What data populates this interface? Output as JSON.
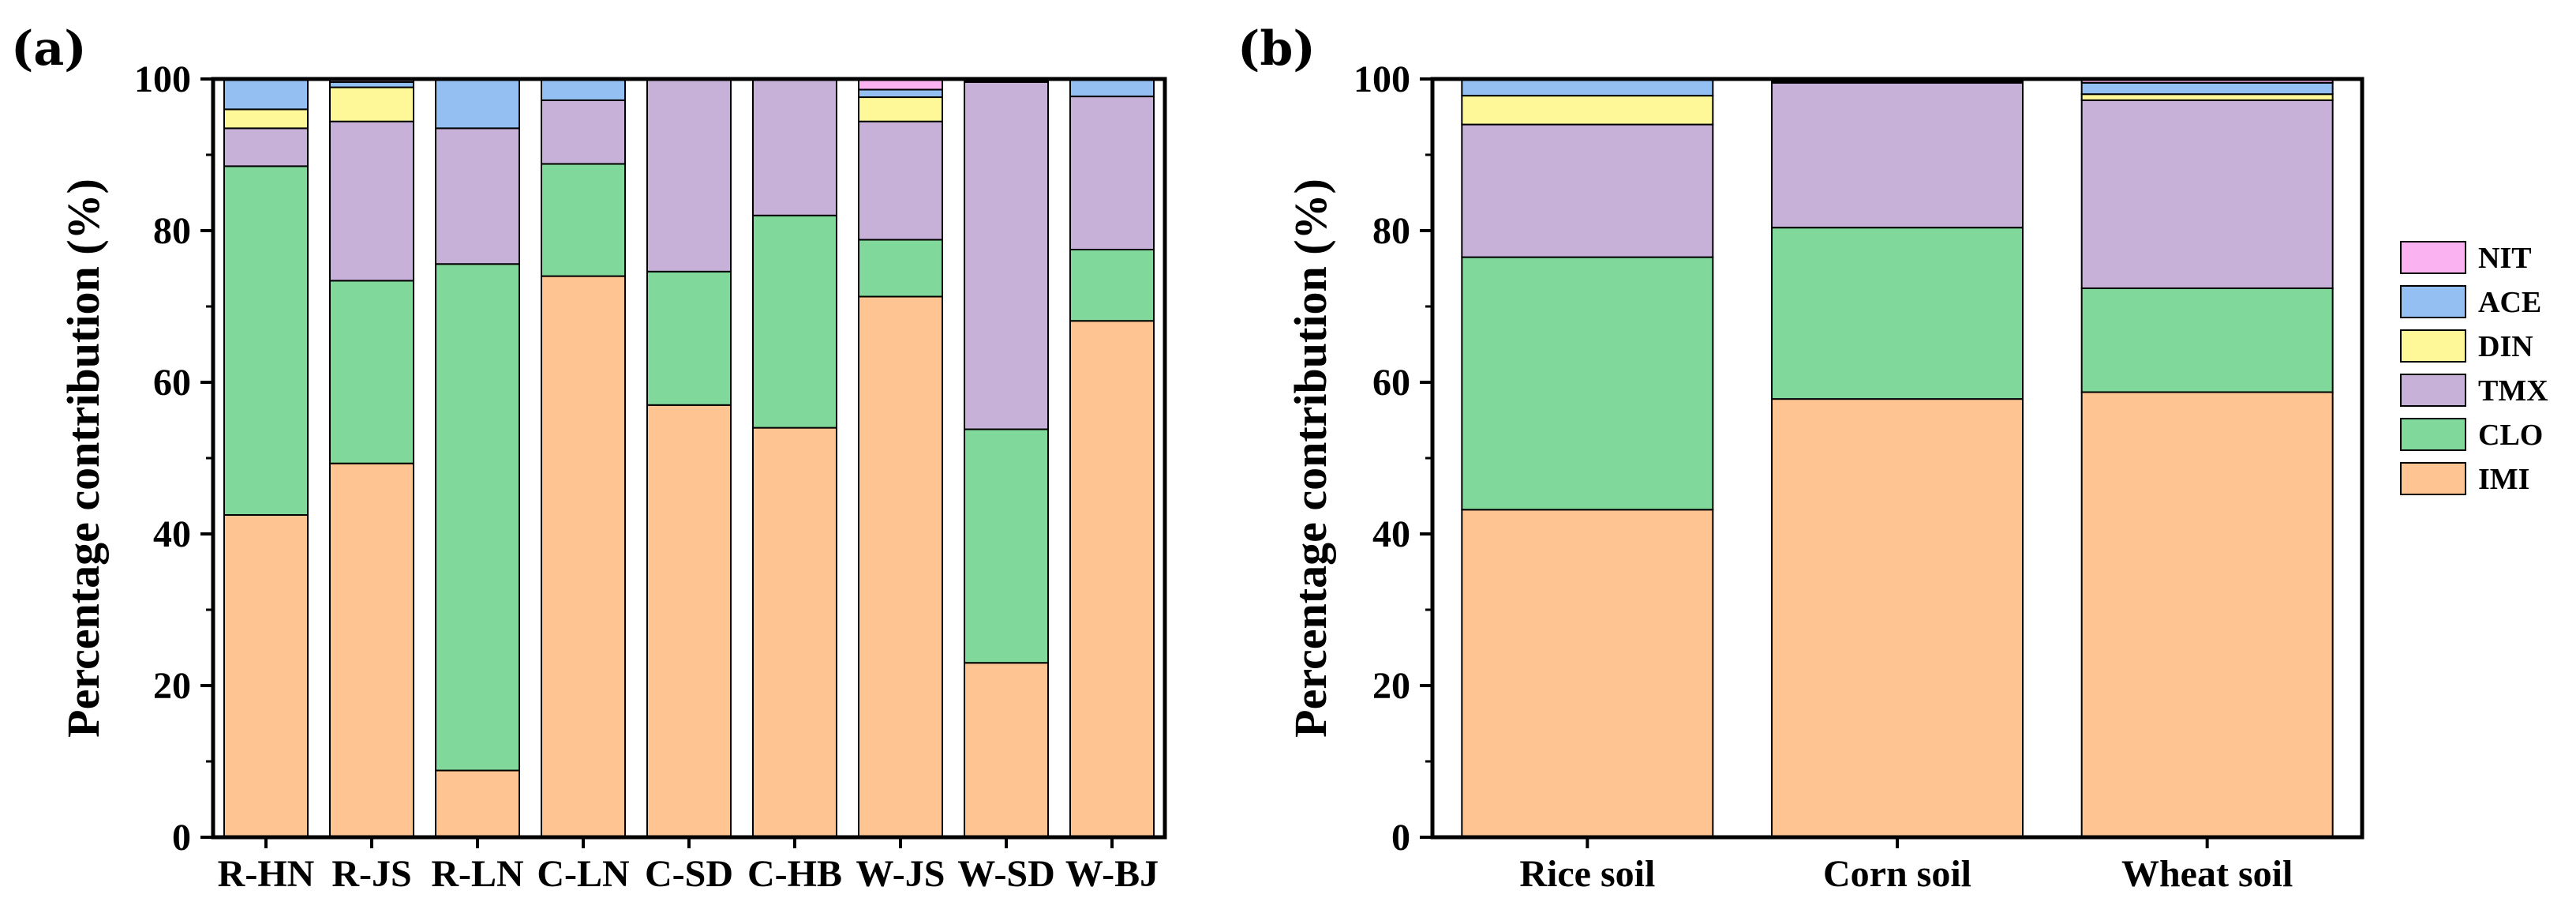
{
  "series_colors": {
    "IMI": "#FEC593",
    "CLO": "#80D99A",
    "TMX": "#C8B1D8",
    "DIN": "#FEF898",
    "ACE": "#93BFF3",
    "NIT": "#FBB2F0"
  },
  "legend": {
    "entries": [
      "NIT",
      "ACE",
      "DIN",
      "TMX",
      "CLO",
      "IMI"
    ]
  },
  "chart_data": [
    {
      "type": "bar",
      "stacked": true,
      "panel_label": "(a)",
      "title": "",
      "xlabel": "",
      "ylabel": "Percentage contribution (%)",
      "ylim": [
        0,
        100
      ],
      "yticks": [
        "0",
        "20",
        "40",
        "60",
        "80",
        "100"
      ],
      "categories": [
        "R-HN",
        "R-JS",
        "R-LN",
        "C-LN",
        "C-SD",
        "C-HB",
        "W-JS",
        "W-SD",
        "W-BJ"
      ],
      "series": [
        {
          "name": "IMI",
          "values": [
            42.5,
            49.3,
            8.8,
            74.0,
            57.0,
            54.0,
            71.3,
            23.0,
            68.1
          ]
        },
        {
          "name": "CLO",
          "values": [
            46.0,
            24.1,
            66.8,
            14.8,
            17.6,
            28.0,
            7.5,
            30.8,
            9.4
          ]
        },
        {
          "name": "TMX",
          "values": [
            5.0,
            21.0,
            17.9,
            8.4,
            25.4,
            18.0,
            15.6,
            45.8,
            20.2
          ]
        },
        {
          "name": "DIN",
          "values": [
            2.5,
            4.5,
            0.0,
            0.0,
            0.0,
            0.0,
            3.2,
            0.0,
            0.0
          ]
        },
        {
          "name": "ACE",
          "values": [
            4.0,
            0.7,
            6.5,
            2.8,
            0.0,
            0.0,
            1.0,
            0.2,
            2.3
          ]
        },
        {
          "name": "NIT",
          "values": [
            0.0,
            0.4,
            0.0,
            0.0,
            0.0,
            0.0,
            1.4,
            0.2,
            0.0
          ]
        }
      ]
    },
    {
      "type": "bar",
      "stacked": true,
      "panel_label": "(b)",
      "title": "",
      "xlabel": "",
      "ylabel": "Percentage contribution (%)",
      "ylim": [
        0,
        100
      ],
      "yticks": [
        "0",
        "20",
        "40",
        "60",
        "80",
        "100"
      ],
      "categories": [
        "Rice soil",
        "Corn soil",
        "Wheat soil"
      ],
      "legend_position": "right",
      "series": [
        {
          "name": "IMI",
          "values": [
            43.2,
            57.8,
            58.7
          ]
        },
        {
          "name": "CLO",
          "values": [
            33.3,
            22.6,
            13.7
          ]
        },
        {
          "name": "TMX",
          "values": [
            17.5,
            19.1,
            24.8
          ]
        },
        {
          "name": "DIN",
          "values": [
            3.8,
            0.2,
            0.8
          ]
        },
        {
          "name": "ACE",
          "values": [
            2.2,
            0.3,
            1.5
          ]
        },
        {
          "name": "NIT",
          "values": [
            0.0,
            0.0,
            0.5
          ]
        }
      ]
    }
  ]
}
